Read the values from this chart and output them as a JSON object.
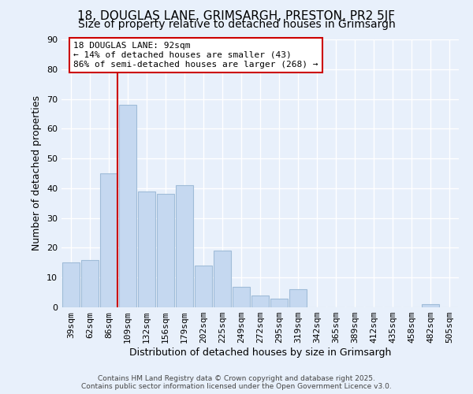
{
  "title": "18, DOUGLAS LANE, GRIMSARGH, PRESTON, PR2 5JF",
  "subtitle": "Size of property relative to detached houses in Grimsargh",
  "xlabel": "Distribution of detached houses by size in Grimsargh",
  "ylabel": "Number of detached properties",
  "bin_labels": [
    "39sqm",
    "62sqm",
    "86sqm",
    "109sqm",
    "132sqm",
    "156sqm",
    "179sqm",
    "202sqm",
    "225sqm",
    "249sqm",
    "272sqm",
    "295sqm",
    "319sqm",
    "342sqm",
    "365sqm",
    "389sqm",
    "412sqm",
    "435sqm",
    "458sqm",
    "482sqm",
    "505sqm"
  ],
  "bar_heights": [
    15,
    16,
    45,
    68,
    39,
    38,
    41,
    14,
    19,
    7,
    4,
    3,
    6,
    0,
    0,
    0,
    0,
    0,
    0,
    1,
    0
  ],
  "bar_color": "#c5d8f0",
  "bar_edgecolor": "#a0bcd8",
  "vline_x_index": 2,
  "vline_color": "#cc0000",
  "ylim": [
    0,
    90
  ],
  "yticks": [
    0,
    10,
    20,
    30,
    40,
    50,
    60,
    70,
    80,
    90
  ],
  "annotation_box_text": "18 DOUGLAS LANE: 92sqm\n← 14% of detached houses are smaller (43)\n86% of semi-detached houses are larger (268) →",
  "annotation_box_color": "#ffffff",
  "annotation_box_edgecolor": "#cc0000",
  "footer_line1": "Contains HM Land Registry data © Crown copyright and database right 2025.",
  "footer_line2": "Contains public sector information licensed under the Open Government Licence v3.0.",
  "background_color": "#e8f0fb",
  "title_fontsize": 11,
  "subtitle_fontsize": 10,
  "xlabel_fontsize": 9,
  "ylabel_fontsize": 9,
  "tick_fontsize": 8,
  "annotation_fontsize": 8,
  "footer_fontsize": 6.5
}
